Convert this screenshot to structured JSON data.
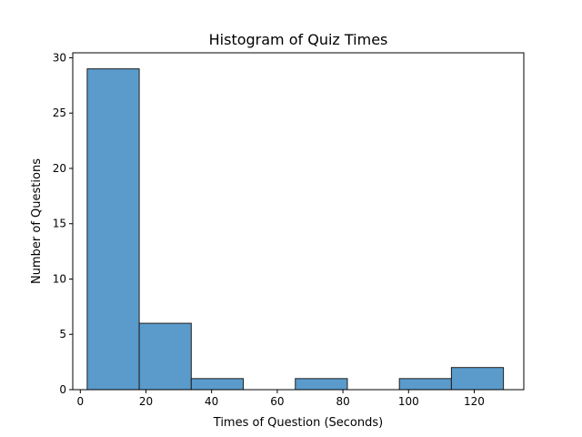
{
  "chart_data": {
    "type": "bar",
    "title": "Histogram of Quiz Times",
    "xlabel": "Times of Question (Seconds)",
    "ylabel": "Number of Questions",
    "xlim": [
      -2.3,
      135.1
    ],
    "ylim": [
      0,
      30.45
    ],
    "xticks": [
      0,
      20,
      40,
      60,
      80,
      100,
      120
    ],
    "yticks": [
      0,
      5,
      10,
      15,
      20,
      25,
      30
    ],
    "bins": [
      {
        "start": 2.1,
        "end": 17.95,
        "count": 29
      },
      {
        "start": 17.95,
        "end": 33.8,
        "count": 6
      },
      {
        "start": 33.8,
        "end": 49.65,
        "count": 1
      },
      {
        "start": 49.65,
        "end": 65.5,
        "count": 0
      },
      {
        "start": 65.5,
        "end": 81.35,
        "count": 1
      },
      {
        "start": 81.35,
        "end": 97.2,
        "count": 0
      },
      {
        "start": 97.2,
        "end": 113.05,
        "count": 1
      },
      {
        "start": 113.05,
        "end": 128.9,
        "count": 2
      }
    ],
    "bar_color": "#5a9bcc",
    "edge_color": "#1f1f1f",
    "grid": false,
    "legend": "none"
  }
}
